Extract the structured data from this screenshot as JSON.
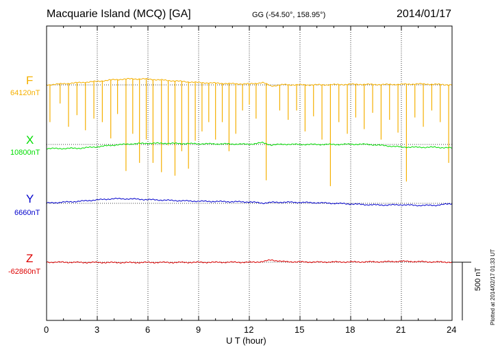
{
  "header": {
    "title": "Macquarie Island (MCQ)  [GA]",
    "coords": "GG (-54.50°, 158.95°)",
    "date": "2014/01/17"
  },
  "components": [
    {
      "label": "F",
      "base": "64120nT",
      "color": "#f5b000"
    },
    {
      "label": "X",
      "base": "10800nT",
      "color": "#00dd00"
    },
    {
      "label": "Y",
      "base": "6660nT",
      "color": "#0000cc"
    },
    {
      "label": "Z",
      "base": "-62860nT",
      "color": "#dd0000"
    }
  ],
  "scale_label": "500 nT",
  "plotted_text": "Plotted at 2014/02/17 01:33 UT",
  "chart_data": {
    "type": "line",
    "xlabel": "U T (hour)",
    "xlim": [
      0,
      24
    ],
    "x_ticks": [
      "0",
      "3",
      "6",
      "9",
      "12",
      "15",
      "18",
      "21",
      "24"
    ],
    "grid": "dotted vertical lines every 3 hours",
    "scale_bar_nT": 500,
    "series": [
      {
        "name": "F",
        "baseline": 64120,
        "x": [
          0,
          1,
          2,
          3,
          4,
          5,
          6,
          7,
          8,
          9,
          10,
          11,
          12,
          12.8,
          13.3,
          14,
          15,
          16,
          17,
          18,
          19,
          20,
          21,
          22,
          23,
          24
        ],
        "y": [
          64120,
          64130,
          64140,
          64150,
          64165,
          64172,
          64170,
          64160,
          64150,
          64140,
          64135,
          64130,
          64128,
          64140,
          64110,
          64122,
          64120,
          64120,
          64122,
          64125,
          64124,
          64123,
          64125,
          64128,
          64125,
          64120
        ],
        "spikes": [
          {
            "x": 0.2,
            "y": 63800
          },
          {
            "x": 0.8,
            "y": 63960
          },
          {
            "x": 1.3,
            "y": 63760
          },
          {
            "x": 1.8,
            "y": 63860
          },
          {
            "x": 2.3,
            "y": 63730
          },
          {
            "x": 2.8,
            "y": 63830
          },
          {
            "x": 3.3,
            "y": 63800
          },
          {
            "x": 3.8,
            "y": 63660
          },
          {
            "x": 4.2,
            "y": 63870
          },
          {
            "x": 4.7,
            "y": 63380
          },
          {
            "x": 5.1,
            "y": 63700
          },
          {
            "x": 5.5,
            "y": 63450
          },
          {
            "x": 5.9,
            "y": 63650
          },
          {
            "x": 6.3,
            "y": 63450
          },
          {
            "x": 6.8,
            "y": 63370
          },
          {
            "x": 7.2,
            "y": 63600
          },
          {
            "x": 7.6,
            "y": 63340
          },
          {
            "x": 8.0,
            "y": 63550
          },
          {
            "x": 8.4,
            "y": 63400
          },
          {
            "x": 8.8,
            "y": 63640
          },
          {
            "x": 9.2,
            "y": 63720
          },
          {
            "x": 9.6,
            "y": 63800
          },
          {
            "x": 10.0,
            "y": 63650
          },
          {
            "x": 10.4,
            "y": 63800
          },
          {
            "x": 10.8,
            "y": 63550
          },
          {
            "x": 11.2,
            "y": 63700
          },
          {
            "x": 11.6,
            "y": 63900
          },
          {
            "x": 12.0,
            "y": 63950
          },
          {
            "x": 12.4,
            "y": 63830
          },
          {
            "x": 13.0,
            "y": 63300
          },
          {
            "x": 13.8,
            "y": 63900
          },
          {
            "x": 14.3,
            "y": 63820
          },
          {
            "x": 14.8,
            "y": 63900
          },
          {
            "x": 15.3,
            "y": 63720
          },
          {
            "x": 15.8,
            "y": 63850
          },
          {
            "x": 16.3,
            "y": 63650
          },
          {
            "x": 16.8,
            "y": 63250
          },
          {
            "x": 17.3,
            "y": 63800
          },
          {
            "x": 17.8,
            "y": 63700
          },
          {
            "x": 18.3,
            "y": 63840
          },
          {
            "x": 18.8,
            "y": 63740
          },
          {
            "x": 19.3,
            "y": 63880
          },
          {
            "x": 19.8,
            "y": 63650
          },
          {
            "x": 20.3,
            "y": 63820
          },
          {
            "x": 20.8,
            "y": 63710
          },
          {
            "x": 21.3,
            "y": 63290
          },
          {
            "x": 21.8,
            "y": 63840
          },
          {
            "x": 22.3,
            "y": 63760
          },
          {
            "x": 22.8,
            "y": 63900
          },
          {
            "x": 23.3,
            "y": 63800
          },
          {
            "x": 23.8,
            "y": 63450
          }
        ]
      },
      {
        "name": "X",
        "baseline": 10800,
        "x": [
          0,
          1,
          2,
          3,
          4,
          5,
          6,
          7,
          8,
          9,
          10,
          11,
          12,
          12.8,
          13.3,
          14,
          15,
          16,
          17,
          18,
          19,
          20,
          21,
          22,
          23,
          24
        ],
        "y": [
          10765,
          10765,
          10768,
          10780,
          10795,
          10805,
          10810,
          10810,
          10808,
          10806,
          10805,
          10804,
          10802,
          10815,
          10795,
          10802,
          10800,
          10800,
          10800,
          10802,
          10801,
          10790,
          10778,
          10776,
          10776,
          10770
        ]
      },
      {
        "name": "Y",
        "baseline": 6660,
        "x": [
          0,
          1,
          2,
          3,
          4,
          5,
          6,
          7,
          8,
          9,
          10,
          11,
          12,
          12.8,
          13.3,
          14,
          15,
          16,
          17,
          18,
          19,
          20,
          21,
          22,
          23,
          24
        ],
        "y": [
          6662,
          6670,
          6678,
          6690,
          6700,
          6698,
          6692,
          6687,
          6682,
          6678,
          6676,
          6674,
          6672,
          6662,
          6668,
          6670,
          6668,
          6665,
          6660,
          6655,
          6648,
          6645,
          6648,
          6642,
          6643,
          6658
        ]
      },
      {
        "name": "Z",
        "baseline": -62860,
        "x": [
          0,
          1,
          2,
          3,
          4,
          5,
          6,
          7,
          8,
          9,
          10,
          11,
          12,
          12.8,
          13.3,
          14,
          15,
          16,
          17,
          18,
          19,
          20,
          21,
          22,
          23,
          24
        ],
        "y": [
          -62860,
          -62860,
          -62862,
          -62862,
          -62863,
          -62863,
          -62862,
          -62862,
          -62862,
          -62861,
          -62861,
          -62860,
          -62861,
          -62855,
          -62840,
          -62855,
          -62858,
          -62859,
          -62858,
          -62858,
          -62857,
          -62856,
          -62852,
          -62855,
          -62858,
          -62860
        ]
      }
    ]
  }
}
